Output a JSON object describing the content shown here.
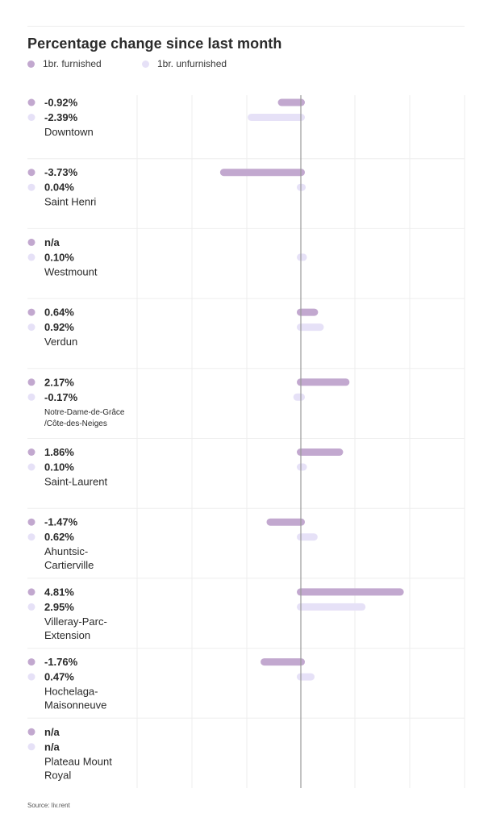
{
  "title": "Percentage change since last month",
  "source": "Source: liv.rent",
  "colors": {
    "furnished": "#c2a8cf",
    "unfurnished": "#e6e1f7",
    "zero_line": "#9a9a9a",
    "grid": "#ececec",
    "text": "#2a2a2a"
  },
  "chart_data": {
    "type": "bar",
    "orientation": "horizontal",
    "title": "Percentage change since last month",
    "legend": {
      "placement": "top-left"
    },
    "grid": true,
    "xlim": [
      -6,
      9
    ],
    "categories": [
      "Downtown",
      "Saint Henri",
      "Westmount",
      "Verdun",
      "Notre-Dame-de-Grâce /Côte-des-Neiges",
      "Saint-Laurent",
      "Ahuntsic-Cartierville",
      "Villeray-Parc-Extension",
      "Hochelaga-Maisonneuve",
      "Plateau Mount Royal"
    ],
    "category_lines": [
      [
        "Downtown"
      ],
      [
        "Saint Henri"
      ],
      [
        "Westmount"
      ],
      [
        "Verdun"
      ],
      [
        "Notre-Dame-de-Grâce",
        "/Côte-des-Neiges"
      ],
      [
        "Saint-Laurent"
      ],
      [
        "Ahuntsic-",
        "Cartierville"
      ],
      [
        "Villeray-Parc-",
        "Extension"
      ],
      [
        "Hochelaga-",
        "Maisonneuve"
      ],
      [
        "Plateau Mount",
        "Royal"
      ]
    ],
    "series": [
      {
        "name": "1br. furnished",
        "values": [
          -0.92,
          -3.73,
          null,
          0.64,
          2.17,
          1.86,
          -1.47,
          4.81,
          -1.76,
          null
        ],
        "labels": [
          "-0.92%",
          "-3.73%",
          "n/a",
          "0.64%",
          "2.17%",
          "1.86%",
          "-1.47%",
          "4.81%",
          "-1.76%",
          "n/a"
        ]
      },
      {
        "name": "1br. unfurnished",
        "values": [
          -2.39,
          0.04,
          0.1,
          0.92,
          -0.17,
          0.1,
          0.62,
          2.95,
          0.47,
          null
        ],
        "labels": [
          "-2.39%",
          "0.04%",
          "0.10%",
          "0.92%",
          "-0.17%",
          "0.10%",
          "0.62%",
          "2.95%",
          "0.47%",
          "n/a"
        ]
      }
    ]
  }
}
